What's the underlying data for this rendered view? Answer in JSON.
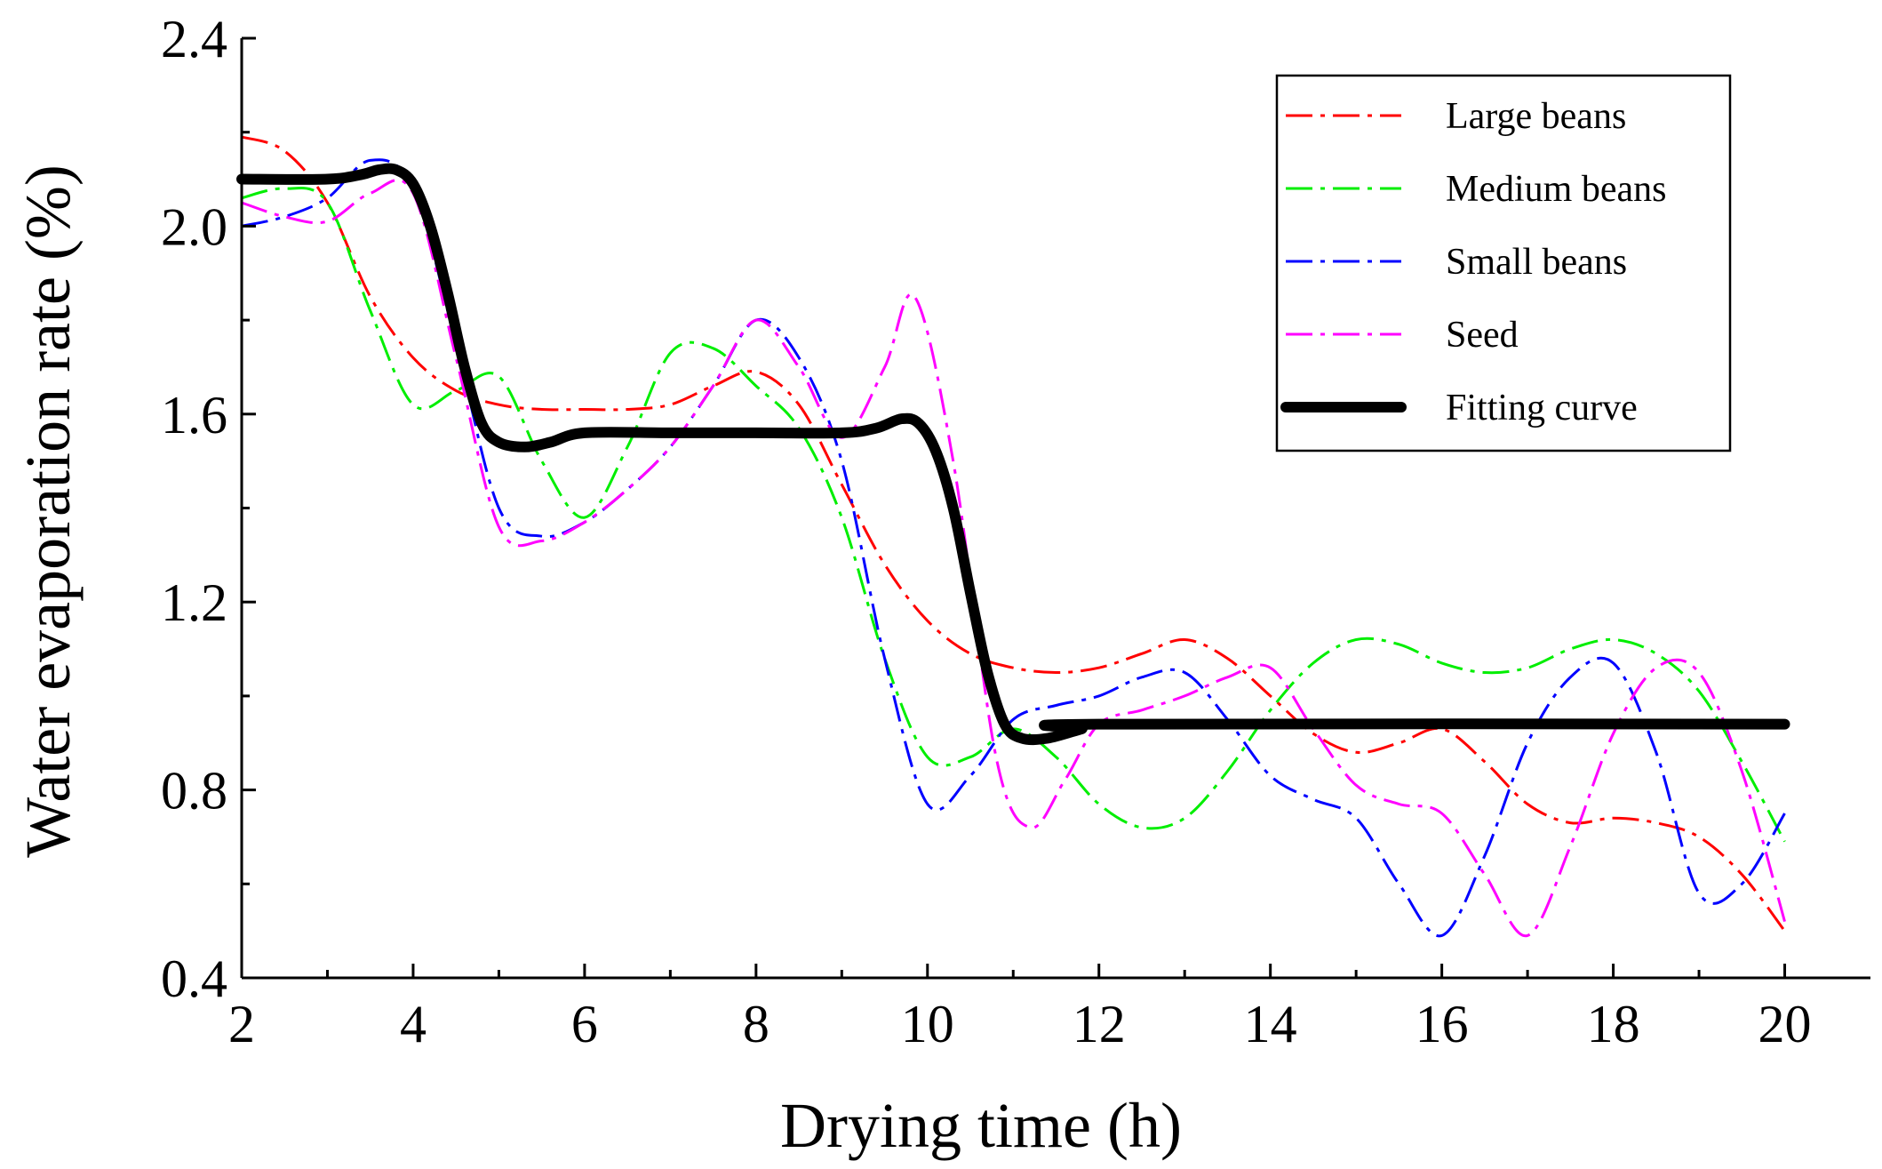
{
  "chart_data": {
    "type": "line",
    "title": "",
    "xlabel": "Drying time (h)",
    "ylabel": "Water evaporation rate (%)",
    "xlim": [
      2,
      21
    ],
    "ylim": [
      0.4,
      2.4
    ],
    "xticks": [
      2,
      4,
      6,
      8,
      10,
      12,
      14,
      16,
      18,
      20
    ],
    "xtick_labels": [
      "2",
      "4",
      "6",
      "8",
      "10",
      "12",
      "14",
      "16",
      "18",
      "20"
    ],
    "yticks": [
      0.4,
      0.8,
      1.2,
      1.6,
      2.0,
      2.4
    ],
    "ytick_labels": [
      "0.4",
      "0.8",
      "1.2",
      "1.6",
      "2.0",
      "2.4"
    ],
    "legend_position": "top-right",
    "series": [
      {
        "name": "Large beans",
        "color": "#ff0000",
        "style": "dash-dot",
        "points": [
          [
            2,
            2.19
          ],
          [
            2.5,
            2.16
          ],
          [
            3,
            2.05
          ],
          [
            3.5,
            1.85
          ],
          [
            4,
            1.72
          ],
          [
            4.5,
            1.65
          ],
          [
            5,
            1.62
          ],
          [
            5.5,
            1.61
          ],
          [
            6,
            1.61
          ],
          [
            6.5,
            1.61
          ],
          [
            7,
            1.62
          ],
          [
            7.5,
            1.66
          ],
          [
            8,
            1.69
          ],
          [
            8.5,
            1.62
          ],
          [
            9,
            1.45
          ],
          [
            9.5,
            1.28
          ],
          [
            10,
            1.16
          ],
          [
            10.5,
            1.09
          ],
          [
            11,
            1.06
          ],
          [
            11.5,
            1.05
          ],
          [
            12,
            1.06
          ],
          [
            12.5,
            1.09
          ],
          [
            13,
            1.12
          ],
          [
            13.5,
            1.08
          ],
          [
            14,
            1.0
          ],
          [
            14.5,
            0.92
          ],
          [
            15,
            0.88
          ],
          [
            15.5,
            0.9
          ],
          [
            16,
            0.93
          ],
          [
            16.5,
            0.86
          ],
          [
            17,
            0.77
          ],
          [
            17.5,
            0.73
          ],
          [
            18,
            0.74
          ],
          [
            18.5,
            0.73
          ],
          [
            19,
            0.7
          ],
          [
            19.5,
            0.62
          ],
          [
            20,
            0.5
          ]
        ]
      },
      {
        "name": "Medium beans",
        "color": "#00ee00",
        "style": "dash-dot",
        "points": [
          [
            2,
            2.06
          ],
          [
            2.5,
            2.08
          ],
          [
            3,
            2.05
          ],
          [
            3.5,
            1.82
          ],
          [
            4,
            1.62
          ],
          [
            4.5,
            1.65
          ],
          [
            5,
            1.68
          ],
          [
            5.5,
            1.5
          ],
          [
            6,
            1.38
          ],
          [
            6.5,
            1.53
          ],
          [
            7,
            1.73
          ],
          [
            7.5,
            1.74
          ],
          [
            8,
            1.66
          ],
          [
            8.5,
            1.57
          ],
          [
            9,
            1.38
          ],
          [
            9.5,
            1.08
          ],
          [
            10,
            0.87
          ],
          [
            10.5,
            0.87
          ],
          [
            11,
            0.93
          ],
          [
            11.5,
            0.87
          ],
          [
            12,
            0.77
          ],
          [
            12.5,
            0.72
          ],
          [
            13,
            0.74
          ],
          [
            13.5,
            0.84
          ],
          [
            14,
            0.97
          ],
          [
            14.5,
            1.07
          ],
          [
            15,
            1.12
          ],
          [
            15.5,
            1.11
          ],
          [
            16,
            1.07
          ],
          [
            16.5,
            1.05
          ],
          [
            17,
            1.06
          ],
          [
            17.5,
            1.1
          ],
          [
            18,
            1.12
          ],
          [
            18.5,
            1.09
          ],
          [
            19,
            1.01
          ],
          [
            19.5,
            0.86
          ],
          [
            20,
            0.69
          ]
        ]
      },
      {
        "name": "Small beans",
        "color": "#0000ff",
        "style": "dash-dot",
        "points": [
          [
            2,
            2.0
          ],
          [
            2.5,
            2.02
          ],
          [
            3,
            2.06
          ],
          [
            3.5,
            2.14
          ],
          [
            4,
            2.08
          ],
          [
            4.5,
            1.75
          ],
          [
            5,
            1.4
          ],
          [
            5.5,
            1.34
          ],
          [
            6,
            1.37
          ],
          [
            6.5,
            1.44
          ],
          [
            7,
            1.53
          ],
          [
            7.5,
            1.66
          ],
          [
            8,
            1.8
          ],
          [
            8.5,
            1.72
          ],
          [
            9,
            1.5
          ],
          [
            9.5,
            1.08
          ],
          [
            10,
            0.77
          ],
          [
            10.5,
            0.83
          ],
          [
            11,
            0.95
          ],
          [
            11.5,
            0.98
          ],
          [
            12,
            1.0
          ],
          [
            12.5,
            1.04
          ],
          [
            13,
            1.05
          ],
          [
            13.5,
            0.95
          ],
          [
            14,
            0.83
          ],
          [
            14.5,
            0.78
          ],
          [
            15,
            0.74
          ],
          [
            15.5,
            0.6
          ],
          [
            16,
            0.49
          ],
          [
            16.5,
            0.66
          ],
          [
            17,
            0.9
          ],
          [
            17.5,
            1.04
          ],
          [
            18,
            1.07
          ],
          [
            18.5,
            0.88
          ],
          [
            19,
            0.58
          ],
          [
            19.5,
            0.6
          ],
          [
            20,
            0.75
          ]
        ]
      },
      {
        "name": "Seed",
        "color": "#ff00ff",
        "style": "dash-dot",
        "points": [
          [
            2,
            2.05
          ],
          [
            2.5,
            2.02
          ],
          [
            3,
            2.01
          ],
          [
            3.5,
            2.07
          ],
          [
            4,
            2.07
          ],
          [
            4.5,
            1.72
          ],
          [
            5,
            1.36
          ],
          [
            5.5,
            1.33
          ],
          [
            6,
            1.37
          ],
          [
            6.5,
            1.44
          ],
          [
            7,
            1.53
          ],
          [
            7.5,
            1.66
          ],
          [
            8,
            1.8
          ],
          [
            8.5,
            1.7
          ],
          [
            9,
            1.55
          ],
          [
            9.5,
            1.7
          ],
          [
            9.85,
            1.85
          ],
          [
            10.3,
            1.5
          ],
          [
            10.8,
            0.87
          ],
          [
            11.2,
            0.72
          ],
          [
            11.6,
            0.82
          ],
          [
            12,
            0.94
          ],
          [
            12.5,
            0.97
          ],
          [
            13,
            1.0
          ],
          [
            13.5,
            1.04
          ],
          [
            14,
            1.06
          ],
          [
            14.5,
            0.93
          ],
          [
            15,
            0.81
          ],
          [
            15.5,
            0.77
          ],
          [
            16,
            0.75
          ],
          [
            16.5,
            0.62
          ],
          [
            17,
            0.49
          ],
          [
            17.5,
            0.68
          ],
          [
            18,
            0.92
          ],
          [
            18.5,
            1.06
          ],
          [
            19,
            1.05
          ],
          [
            19.5,
            0.84
          ],
          [
            20,
            0.52
          ]
        ]
      },
      {
        "name": "Fitting curve",
        "color": "#000000",
        "style": "solid",
        "points": [
          [
            2,
            2.1
          ],
          [
            3,
            2.1
          ],
          [
            3.4,
            2.11
          ],
          [
            3.6,
            2.12
          ],
          [
            3.8,
            2.12
          ],
          [
            4,
            2.09
          ],
          [
            4.2,
            2.0
          ],
          [
            4.4,
            1.86
          ],
          [
            4.6,
            1.7
          ],
          [
            4.8,
            1.58
          ],
          [
            5,
            1.54
          ],
          [
            5.3,
            1.53
          ],
          [
            5.6,
            1.54
          ],
          [
            6,
            1.56
          ],
          [
            7,
            1.56
          ],
          [
            8,
            1.56
          ],
          [
            9,
            1.56
          ],
          [
            9.4,
            1.57
          ],
          [
            9.7,
            1.59
          ],
          [
            9.9,
            1.58
          ],
          [
            10.1,
            1.52
          ],
          [
            10.3,
            1.4
          ],
          [
            10.5,
            1.22
          ],
          [
            10.7,
            1.05
          ],
          [
            10.9,
            0.94
          ],
          [
            11.1,
            0.91
          ],
          [
            11.4,
            0.91
          ],
          [
            11.8,
            0.93
          ],
          [
            12,
            0.94
          ],
          [
            20,
            0.94
          ]
        ]
      }
    ]
  }
}
